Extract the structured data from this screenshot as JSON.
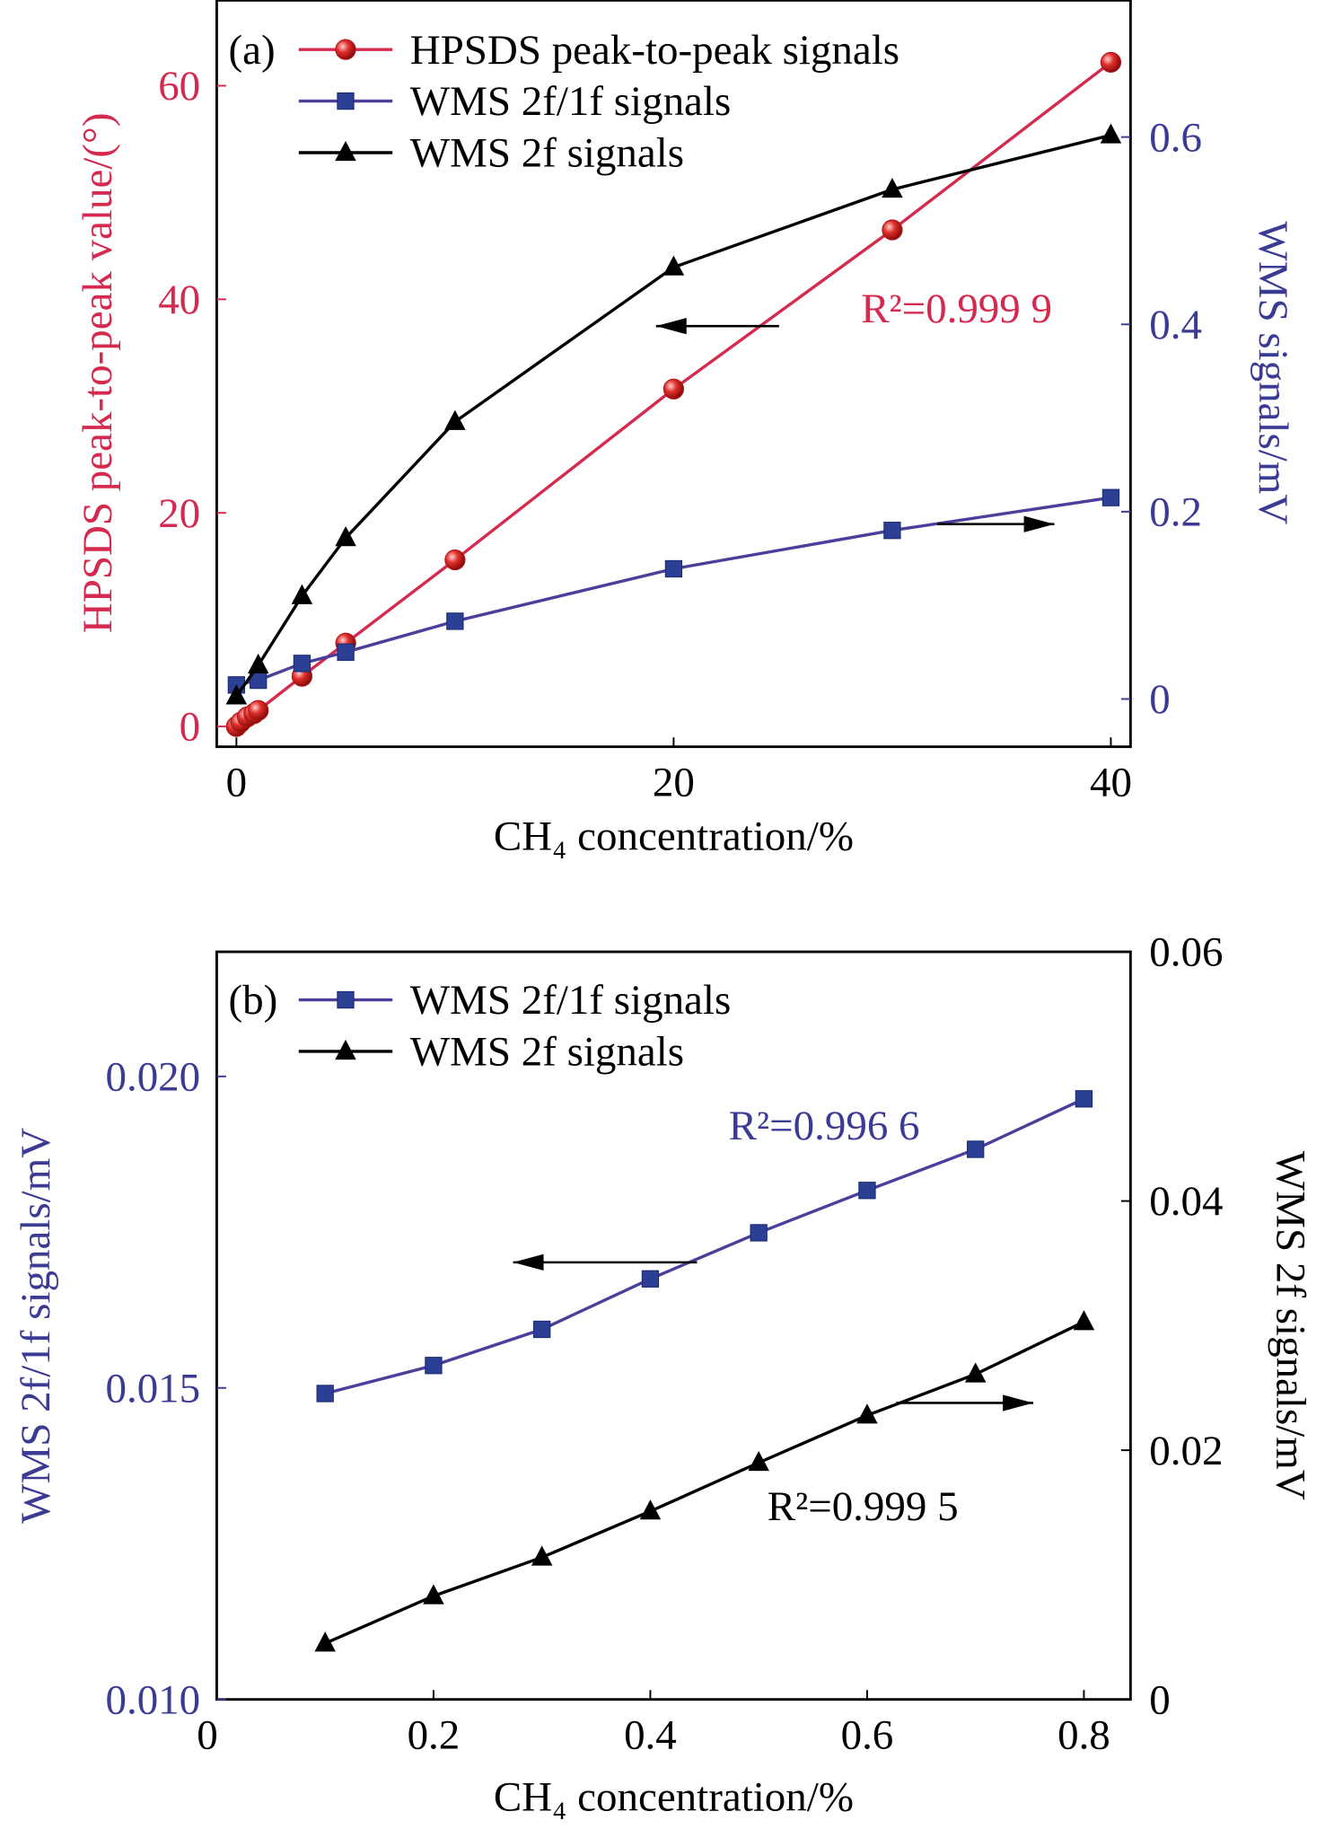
{
  "chart_data": [
    {
      "type": "line",
      "panel_label": "(a)",
      "xlabel": "CH₄ concentration/%",
      "ylabel": "HPSDS peak-to-peak value/(°)",
      "y2label": "WMS signals/mV",
      "xlim": [
        -0.9,
        40.9
      ],
      "ylim": [
        -1.9,
        68
      ],
      "y2lim": [
        -0.051,
        0.746
      ],
      "xticks": [
        "0",
        "20",
        "40"
      ],
      "xtick_values": [
        0,
        20,
        40
      ],
      "yticks": [
        "0",
        "20",
        "40",
        "60"
      ],
      "ytick_values": [
        0,
        20,
        40,
        60
      ],
      "y2ticks": [
        "0",
        "0.2",
        "0.4",
        "0.6"
      ],
      "y2tick_values": [
        0,
        0.2,
        0.4,
        0.6
      ],
      "grid": false,
      "legend_position": "top-left",
      "colors": {
        "left_axis": "#d42a4f",
        "right_axis": "#3b3b94"
      },
      "series": [
        {
          "name": "HPSDS peak-to-peak signals",
          "axis": "left",
          "marker": "circle",
          "color": "#d42a4f",
          "x": [
            0,
            0.2,
            0.5,
            0.8,
            1,
            3,
            5,
            10,
            20,
            30,
            40
          ],
          "y": [
            0,
            0.4,
            0.9,
            1.2,
            1.5,
            4.7,
            7.8,
            15.6,
            31.6,
            46.5,
            62.2
          ]
        },
        {
          "name": "WMS 2f/1f signals",
          "axis": "right",
          "marker": "square",
          "color": "#2b3f94",
          "x": [
            0,
            1,
            3,
            5,
            10,
            20,
            30,
            40
          ],
          "y": [
            0.015,
            0.02,
            0.038,
            0.05,
            0.083,
            0.139,
            0.18,
            0.215
          ]
        },
        {
          "name": "WMS 2f signals",
          "axis": "right",
          "marker": "triangle",
          "color": "#000000",
          "x": [
            0,
            1,
            3,
            5,
            10,
            20,
            30,
            40
          ],
          "y": [
            0.003,
            0.036,
            0.11,
            0.172,
            0.296,
            0.461,
            0.544,
            0.602
          ]
        }
      ],
      "annotations": [
        {
          "text": "R²=0.999 9",
          "color": "#d42a4f"
        }
      ]
    },
    {
      "type": "line",
      "panel_label": "(b)",
      "xlabel": "CH₄ concentration/%",
      "ylabel": "WMS 2f/1f signals/mV",
      "y2label": "WMS 2f signals/mV",
      "xlim": [
        0,
        0.843
      ],
      "ylim": [
        0.01,
        0.022
      ],
      "y2lim": [
        0,
        0.06
      ],
      "xticks": [
        "0",
        "0.2",
        "0.4",
        "0.6",
        "0.8"
      ],
      "xtick_values": [
        0,
        0.2,
        0.4,
        0.6,
        0.8
      ],
      "yticks": [
        "0.010",
        "0.015",
        "0.020"
      ],
      "ytick_values": [
        0.01,
        0.015,
        0.02
      ],
      "y2ticks": [
        "0",
        "0.02",
        "0.04",
        "0.06"
      ],
      "y2tick_values": [
        0,
        0.02,
        0.04,
        0.06
      ],
      "grid": false,
      "legend_position": "top-left",
      "colors": {
        "left_axis": "#3b3b94",
        "right_axis": "#000000"
      },
      "series": [
        {
          "name": "WMS 2f/1f signals",
          "axis": "left",
          "marker": "square",
          "color": "#2b3f94",
          "x": [
            0.1,
            0.2,
            0.3,
            0.4,
            0.5,
            0.6,
            0.7,
            0.8
          ],
          "y": [
            0.01491,
            0.01536,
            0.01594,
            0.01675,
            0.01749,
            0.01817,
            0.01883,
            0.01964
          ]
        },
        {
          "name": "WMS 2f signals",
          "axis": "right",
          "marker": "triangle",
          "color": "#000000",
          "x": [
            0.1,
            0.2,
            0.3,
            0.4,
            0.5,
            0.6,
            0.7,
            0.8
          ],
          "y": [
            0.0045,
            0.0083,
            0.0114,
            0.0151,
            0.019,
            0.0228,
            0.0261,
            0.0303
          ]
        }
      ],
      "annotations": [
        {
          "text": "R²=0.996 6",
          "color": "#3b3b94"
        },
        {
          "text": "R²=0.999 5",
          "color": "#000000"
        }
      ]
    }
  ]
}
